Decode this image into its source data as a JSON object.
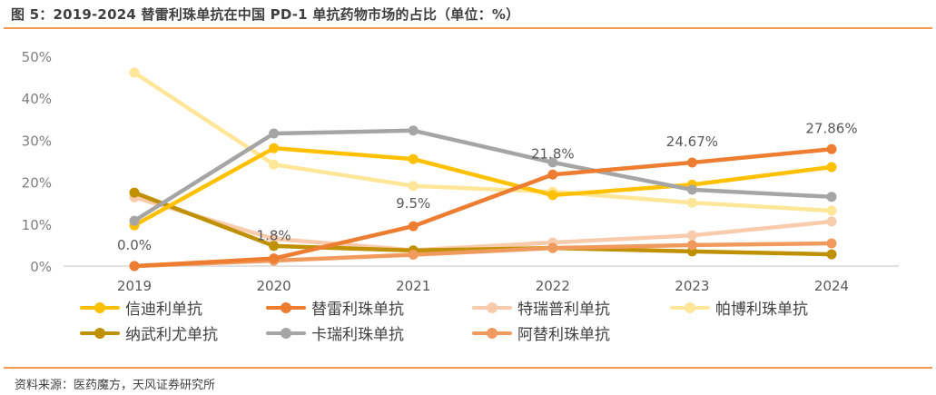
{
  "header": {
    "title": "图 5：2019-2024 替雷利珠单抗在中国 PD-1 单抗药物市场的占比（单位：%）"
  },
  "footer": {
    "source": "资料来源：医药魔方，天风证券研究所"
  },
  "colors": {
    "rule": "#F39A50",
    "grid": "#D9D9D9"
  },
  "chart_data": {
    "type": "line",
    "title": "2019-2024 替雷利珠单抗在中国 PD-1 单抗药物市场的占比（单位：%）",
    "xlabel": "",
    "ylabel": "",
    "categories": [
      "2019",
      "2020",
      "2021",
      "2022",
      "2023",
      "2024"
    ],
    "y_ticks": [
      "0%",
      "10%",
      "20%",
      "30%",
      "40%",
      "50%"
    ],
    "ylim": [
      0,
      50
    ],
    "grid": false,
    "legend_position": "bottom",
    "series": [
      {
        "name": "信迪利单抗",
        "color": "#FFC000",
        "values": [
          9.7,
          28.1,
          25.5,
          16.9,
          19.4,
          23.6
        ]
      },
      {
        "name": "替雷利珠单抗",
        "color": "#ED7D31",
        "values": [
          0.0,
          1.8,
          9.5,
          21.8,
          24.67,
          27.86
        ],
        "data_labels": [
          "0.0%",
          "1.8%",
          "9.5%",
          "21.8%",
          "24.67%",
          "27.86%"
        ]
      },
      {
        "name": "特瑞普利单抗",
        "color": "#F8CBAD",
        "values": [
          16.4,
          6.5,
          3.8,
          5.6,
          7.3,
          10.6
        ]
      },
      {
        "name": "帕博利珠单抗",
        "color": "#FFE699",
        "values": [
          46.1,
          24.2,
          19.1,
          17.7,
          15.1,
          13.2
        ]
      },
      {
        "name": "纳武利尤单抗",
        "color": "#BF9000",
        "values": [
          17.5,
          4.8,
          3.7,
          4.3,
          3.5,
          2.8
        ]
      },
      {
        "name": "卡瑞利珠单抗",
        "color": "#A5A5A5",
        "values": [
          10.8,
          31.6,
          32.3,
          24.7,
          18.2,
          16.5
        ]
      },
      {
        "name": "阿替利珠单抗",
        "color": "#F19A5E",
        "values": [
          0.0,
          1.3,
          2.7,
          4.3,
          5.0,
          5.4
        ]
      }
    ]
  }
}
